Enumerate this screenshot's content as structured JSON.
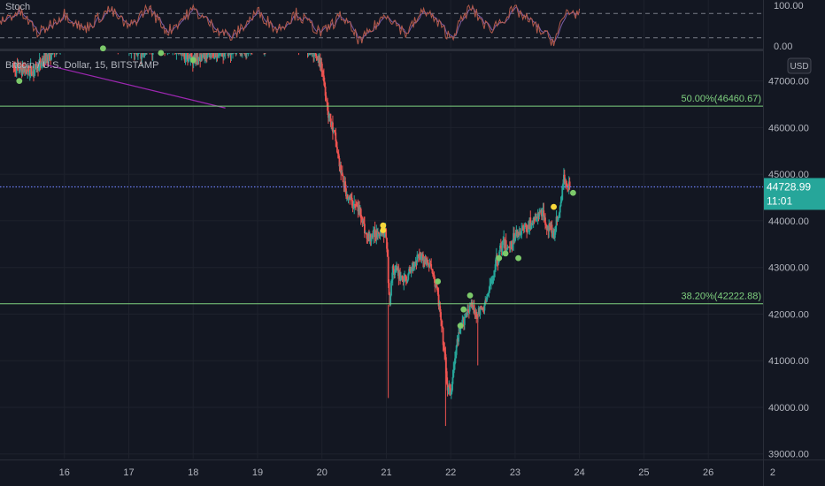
{
  "oscillator": {
    "label": "Stoch",
    "axis_ticks": [
      "100.00",
      "0.00"
    ],
    "upper_band": 80,
    "lower_band": 20,
    "ylim": [
      0,
      100
    ]
  },
  "main": {
    "symbol_label": "Bitcoin / U.S. Dollar, 15, BITSTAMP",
    "currency_badge": "USD",
    "price_ticks": [
      "47000.00",
      "46000.00",
      "45000.00",
      "44000.00",
      "43000.00",
      "42000.00",
      "41000.00",
      "40000.00",
      "39000.00"
    ],
    "x_ticks": [
      "16",
      "17",
      "18",
      "19",
      "20",
      "21",
      "22",
      "23",
      "24",
      "25",
      "26",
      "2"
    ],
    "last_price": "44728.99",
    "countdown": "11:01",
    "fib_upper_label": "50.00%(46460.67)",
    "fib_lower_label": "38.20%(42222.88)"
  },
  "chart_data": {
    "type": "candlestick",
    "symbol": "Bitcoin / U.S. Dollar, 15, BITSTAMP",
    "ylim": [
      38900,
      47600
    ],
    "x_ticks": [
      16,
      17,
      18,
      19,
      20,
      21,
      22,
      23,
      24,
      25,
      26
    ],
    "horizontal_levels": [
      {
        "label": "50.00%(46460.67)",
        "value": 46460.67
      },
      {
        "label": "38.20%(42222.88)",
        "value": 42222.88
      }
    ],
    "last_price": 44728.99,
    "price_path": [
      [
        15.2,
        47300
      ],
      [
        15.5,
        47200
      ],
      [
        16.0,
        47900
      ],
      [
        16.6,
        48000
      ],
      [
        17.2,
        47600
      ],
      [
        17.5,
        47800
      ],
      [
        18.0,
        47500
      ],
      [
        19.5,
        47900
      ],
      [
        19.8,
        47700
      ],
      [
        20.0,
        47300
      ],
      [
        20.1,
        46300
      ],
      [
        20.2,
        45800
      ],
      [
        20.3,
        45000
      ],
      [
        20.4,
        44500
      ],
      [
        20.6,
        44200
      ],
      [
        20.7,
        43600
      ],
      [
        20.9,
        43800
      ],
      [
        21.0,
        43700
      ],
      [
        21.05,
        42200
      ],
      [
        21.1,
        43000
      ],
      [
        21.3,
        42700
      ],
      [
        21.5,
        43300
      ],
      [
        21.7,
        43000
      ],
      [
        21.8,
        42400
      ],
      [
        21.9,
        41200
      ],
      [
        21.95,
        40400
      ],
      [
        22.0,
        40300
      ],
      [
        22.1,
        41400
      ],
      [
        22.2,
        41900
      ],
      [
        22.3,
        42200
      ],
      [
        22.4,
        42000
      ],
      [
        22.5,
        42100
      ],
      [
        22.6,
        42500
      ],
      [
        22.7,
        43100
      ],
      [
        22.8,
        43500
      ],
      [
        22.9,
        43400
      ],
      [
        23.0,
        43700
      ],
      [
        23.2,
        43900
      ],
      [
        23.3,
        44000
      ],
      [
        23.4,
        44200
      ],
      [
        23.5,
        43900
      ],
      [
        23.6,
        43700
      ],
      [
        23.7,
        44300
      ],
      [
        23.75,
        44900
      ],
      [
        23.85,
        44729
      ]
    ],
    "signal_dots": [
      {
        "x": 15.3,
        "y": 47000,
        "color": "#7cc96a"
      },
      {
        "x": 16.6,
        "y": 47700,
        "color": "#7cc96a"
      },
      {
        "x": 17.5,
        "y": 47600,
        "color": "#7cc96a"
      },
      {
        "x": 18.0,
        "y": 47450,
        "color": "#7cc96a"
      },
      {
        "x": 20.95,
        "y": 43900,
        "color": "#f7d63a"
      },
      {
        "x": 20.95,
        "y": 43800,
        "color": "#f7d63a"
      },
      {
        "x": 21.8,
        "y": 42700,
        "color": "#7cc96a"
      },
      {
        "x": 22.2,
        "y": 42100,
        "color": "#7cc96a"
      },
      {
        "x": 22.3,
        "y": 42400,
        "color": "#7cc96a"
      },
      {
        "x": 22.15,
        "y": 41750,
        "color": "#7cc96a"
      },
      {
        "x": 22.75,
        "y": 43200,
        "color": "#7cc96a"
      },
      {
        "x": 22.85,
        "y": 43300,
        "color": "#7cc96a"
      },
      {
        "x": 23.05,
        "y": 43200,
        "color": "#7cc96a"
      },
      {
        "x": 23.6,
        "y": 44300,
        "color": "#f7d63a"
      },
      {
        "x": 23.9,
        "y": 44600,
        "color": "#7cc96a"
      }
    ],
    "stoch_path": [
      [
        15.0,
        60
      ],
      [
        15.3,
        85
      ],
      [
        15.6,
        30
      ],
      [
        16.0,
        80
      ],
      [
        16.3,
        40
      ],
      [
        16.7,
        90
      ],
      [
        17.0,
        45
      ],
      [
        17.3,
        95
      ],
      [
        17.6,
        35
      ],
      [
        18.0,
        90
      ],
      [
        18.3,
        50
      ],
      [
        18.6,
        20
      ],
      [
        19.0,
        85
      ],
      [
        19.3,
        40
      ],
      [
        19.6,
        80
      ],
      [
        20.0,
        30
      ],
      [
        20.3,
        75
      ],
      [
        20.6,
        10
      ],
      [
        21.0,
        80
      ],
      [
        21.3,
        30
      ],
      [
        21.6,
        90
      ],
      [
        22.0,
        20
      ],
      [
        22.3,
        95
      ],
      [
        22.6,
        40
      ],
      [
        23.0,
        90
      ],
      [
        23.3,
        50
      ],
      [
        23.6,
        10
      ],
      [
        23.8,
        85
      ],
      [
        24.0,
        80
      ]
    ],
    "colors": {
      "up": "#26a69a",
      "down": "#ef5350",
      "stoch_k": "#b35a4a",
      "stoch_d": "#7b5ea7",
      "fib_line": "#7fd17f",
      "last_price_line": "#6a7cf2",
      "trendline": "#9c27b0"
    }
  }
}
